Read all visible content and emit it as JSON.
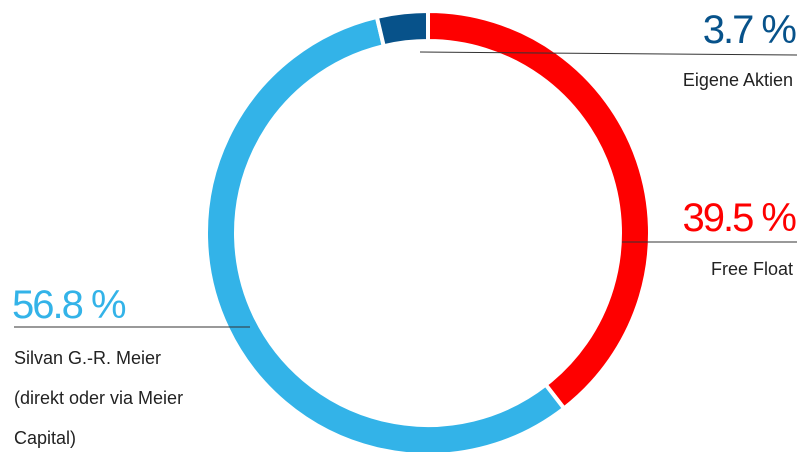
{
  "chart_data": {
    "type": "pie",
    "categories": [
      "Free Float",
      "Silvan G.-R. Meier (direkt oder via Meier Capital)",
      "Eigene Aktien"
    ],
    "values": [
      39.5,
      56.8,
      3.7
    ],
    "value_labels": [
      "39.5 %",
      "56.8 %",
      "3.7 %"
    ],
    "colors": [
      "#fe0000",
      "#33b3e8",
      "#07528a"
    ]
  }
}
